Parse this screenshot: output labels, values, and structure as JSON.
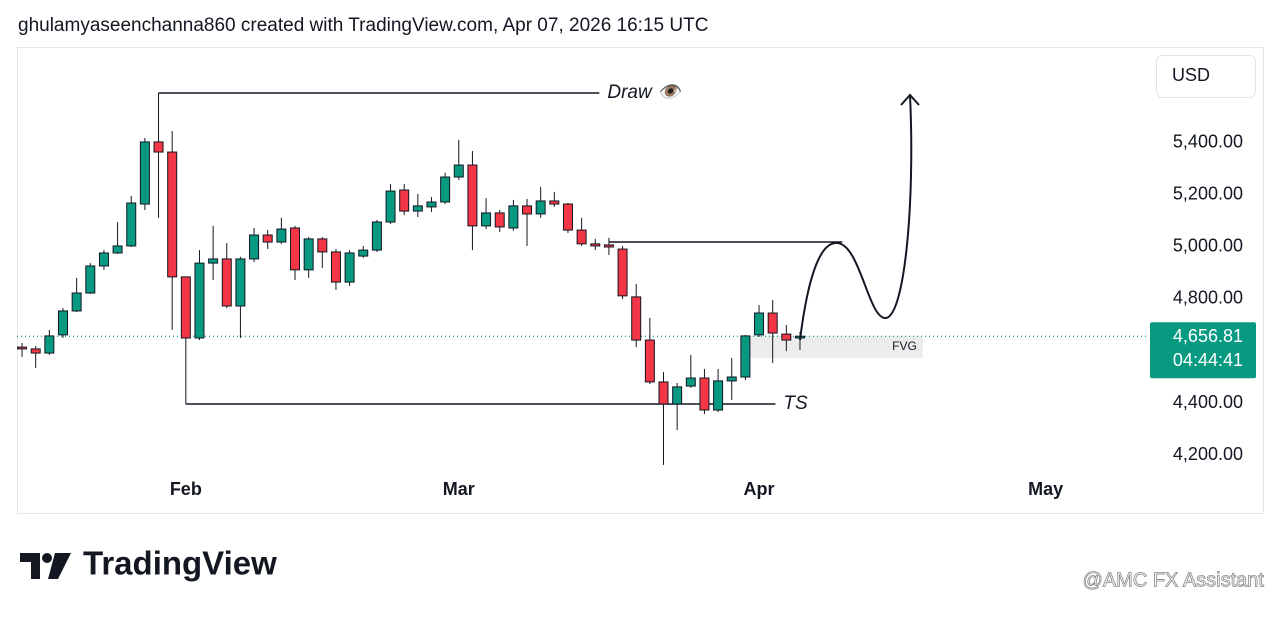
{
  "header": "ghulamyaseenchanna860 created with TradingView.com, Apr 07, 2026 16:15 UTC",
  "brand": "TradingView",
  "watermark": "@AMC FX Assistant",
  "chart_data": {
    "type": "candlestick",
    "currency": "USD",
    "up_color": "#089981",
    "down_color": "#f23645",
    "x": [
      0,
      1,
      2,
      3,
      4,
      5,
      6,
      7,
      8,
      9,
      10,
      11,
      12,
      13,
      14,
      15,
      16,
      17,
      18,
      19,
      20,
      21,
      22,
      23,
      24,
      25,
      26,
      27,
      28,
      29,
      30,
      31,
      32,
      33,
      34,
      35,
      36,
      37,
      38,
      39,
      40,
      41,
      42,
      43,
      44,
      45,
      46,
      47,
      48,
      49,
      50,
      51,
      52,
      53,
      54,
      55,
      56,
      57
    ],
    "open": [
      4615,
      4608,
      4592,
      4662,
      4754,
      4823,
      4927,
      4977,
      5004,
      5165,
      5404,
      5365,
      4885,
      4650,
      4938,
      4954,
      4773,
      4954,
      5046,
      5019,
      5073,
      4912,
      5031,
      4981,
      4865,
      4965,
      4988,
      5096,
      5219,
      5138,
      5154,
      5173,
      5269,
      5315,
      5081,
      5131,
      5073,
      5158,
      5127,
      5177,
      5165,
      5065,
      5012,
      5008,
      4992,
      4808,
      4642,
      4481,
      4396,
      4465,
      4496,
      4373,
      4485,
      4500,
      4662,
      4746,
      4665,
      4650
    ],
    "high": [
      4631,
      4619,
      4681,
      4765,
      4881,
      4938,
      4988,
      5096,
      5196,
      5419,
      5592,
      5446,
      4885,
      4988,
      5081,
      5015,
      4962,
      5073,
      5065,
      5112,
      5081,
      5038,
      5038,
      4992,
      4988,
      5004,
      5104,
      5242,
      5242,
      5204,
      5192,
      5285,
      5412,
      5369,
      5188,
      5142,
      5181,
      5185,
      5231,
      5212,
      5169,
      5112,
      5031,
      5035,
      5004,
      4858,
      4727,
      4519,
      4477,
      4585,
      4531,
      4531,
      4573,
      4662,
      4777,
      4796,
      4700,
      4673
    ],
    "low": [
      4577,
      4535,
      4585,
      4650,
      4750,
      4819,
      4912,
      4973,
      5000,
      5142,
      5112,
      4681,
      4396,
      4642,
      4873,
      4765,
      4650,
      4942,
      4992,
      5012,
      4873,
      4881,
      4919,
      4835,
      4850,
      4958,
      4981,
      5088,
      5123,
      5115,
      5135,
      5165,
      5258,
      4988,
      5069,
      5058,
      5062,
      5004,
      5112,
      5154,
      5054,
      5004,
      4988,
      4969,
      4800,
      4615,
      4473,
      4162,
      4296,
      4458,
      4358,
      4365,
      4412,
      4488,
      4654,
      4554,
      4600,
      4604
    ],
    "close": [
      4608,
      4592,
      4658,
      4754,
      4823,
      4927,
      4977,
      5004,
      5169,
      5404,
      5365,
      4885,
      4650,
      4938,
      4954,
      4773,
      4954,
      5046,
      5019,
      5069,
      4912,
      5031,
      4981,
      4865,
      4977,
      4988,
      5096,
      5215,
      5138,
      5158,
      5173,
      5269,
      5315,
      5081,
      5131,
      5077,
      5158,
      5127,
      5177,
      5165,
      5065,
      5012,
      5004,
      5000,
      4812,
      4642,
      4481,
      4396,
      4462,
      4496,
      4373,
      4485,
      4500,
      4658,
      4746,
      4669,
      4642,
      4656.81
    ],
    "last_price": {
      "value": 4656.81,
      "label": "4,656.81"
    },
    "countdown": "04:44:41",
    "xlim": [
      -0.37,
      82.5
    ],
    "xticks": [
      {
        "value": 12,
        "label": "Feb"
      },
      {
        "value": 32,
        "label": "Mar"
      },
      {
        "value": 54,
        "label": "Apr"
      },
      {
        "value": 75,
        "label": "May"
      }
    ],
    "ylim": [
      3977,
      5769
    ],
    "yticks": [
      {
        "value": 4200,
        "label": "4,200.00"
      },
      {
        "value": 4400,
        "label": "4,400.00"
      },
      {
        "value": 4600,
        "label": "4,600.00"
      },
      {
        "value": 4800,
        "label": "4,800.00"
      },
      {
        "value": 5000,
        "label": "5,000.00"
      },
      {
        "value": 5200,
        "label": "5,200.00"
      },
      {
        "value": 5400,
        "label": "5,400.00"
      }
    ],
    "annotations": [
      {
        "text": "Draw 👁️",
        "level": 5592,
        "x": [
          10,
          42.3
        ]
      },
      {
        "text": "TS",
        "level": 4396,
        "x": [
          12,
          55.2
        ]
      },
      {
        "level": 5019,
        "x": [
          43,
          60.1
        ]
      }
    ],
    "zone": {
      "text": "FVG",
      "range": [
        4573,
        4658
      ],
      "x": [
        52.6,
        66
      ]
    }
  }
}
